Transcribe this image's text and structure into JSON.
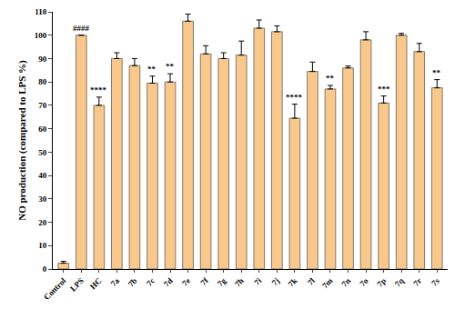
{
  "chart_data": {
    "type": "bar",
    "y_label": "NO production (compared to LPS %)",
    "categories": [
      "Control",
      "LPS",
      "HC",
      "7a",
      "7b",
      "7c",
      "7d",
      "7e",
      "7f",
      "7g",
      "7h",
      "7i",
      "7j",
      "7k",
      "7l",
      "7m",
      "7n",
      "7o",
      "7p",
      "7q",
      "7r",
      "7s"
    ],
    "values": [
      2.5,
      100,
      70,
      90,
      87,
      79.5,
      80,
      106,
      92,
      90,
      91.5,
      103,
      101.5,
      64.5,
      84.5,
      77,
      86,
      98,
      71,
      100,
      93,
      77.5
    ],
    "errors": [
      0.8,
      0,
      3.5,
      2.5,
      3,
      3,
      3.5,
      3,
      3.5,
      2.5,
      6,
      3.5,
      2.5,
      6,
      4,
      1.5,
      0.8,
      3.5,
      3,
      0.8,
      3.5,
      3.5
    ],
    "annotations": [
      {
        "category": "LPS",
        "text": "####"
      },
      {
        "category": "HC",
        "text": "****"
      },
      {
        "category": "7c",
        "text": "**"
      },
      {
        "category": "7d",
        "text": "**"
      },
      {
        "category": "7k",
        "text": "****"
      },
      {
        "category": "7m",
        "text": "**"
      },
      {
        "category": "7p",
        "text": "***"
      },
      {
        "category": "7s",
        "text": "**"
      }
    ],
    "color": "#f9c88c",
    "ylim": [
      0,
      110
    ],
    "yticks": [
      0,
      10,
      20,
      30,
      40,
      50,
      60,
      70,
      80,
      90,
      100,
      110
    ],
    "grid": false
  }
}
